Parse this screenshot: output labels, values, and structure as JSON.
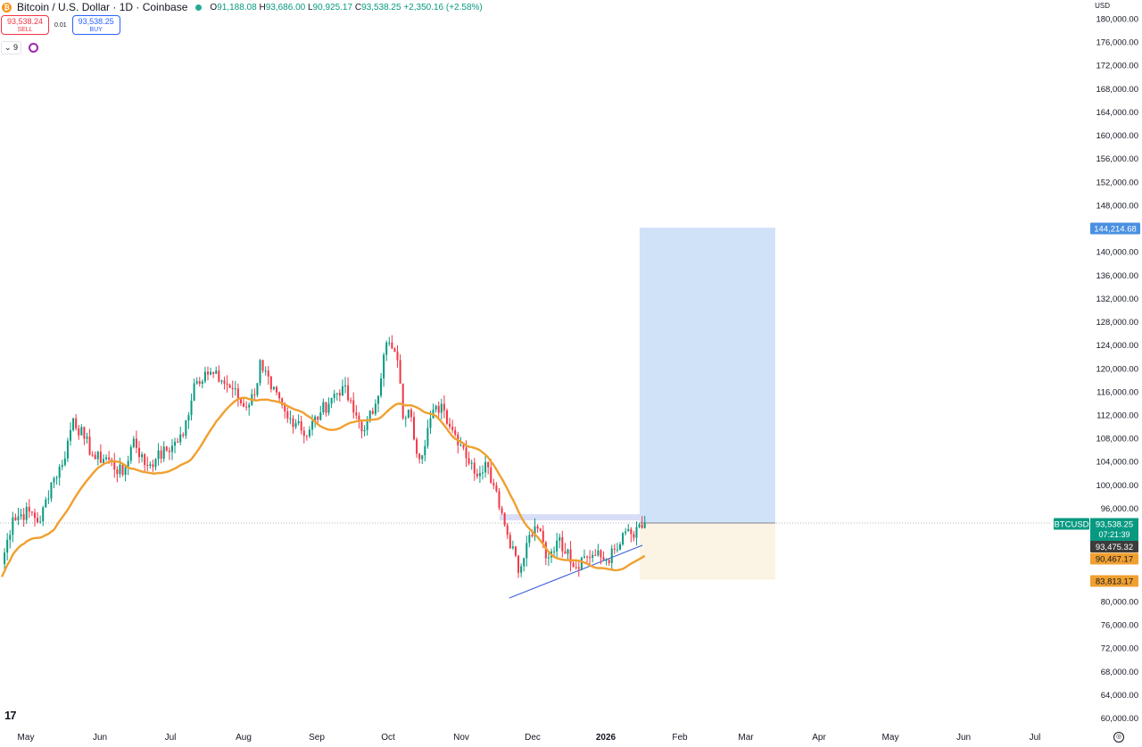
{
  "header": {
    "coin_glyph": "₿",
    "title": "Bitcoin / U.S. Dollar · 1D · Coinbase",
    "open_label": "O",
    "open": "91,188.08",
    "high_label": "H",
    "high": "93,686.00",
    "low_label": "L",
    "low": "90,925.17",
    "close_label": "C",
    "close": "93,538.25",
    "change": "+2,350.16 (+2.58%)"
  },
  "trade": {
    "sell_price": "93,538.24",
    "sell_label": "SELL",
    "spread": "0.01",
    "buy_price": "93,538.25",
    "buy_label": "BUY"
  },
  "indicators": {
    "toggle_label": "⌄ 9"
  },
  "currency": "USD",
  "logo_text": "17",
  "colors": {
    "up": "#089981",
    "down": "#f23645",
    "ma": "#f0a030",
    "target_zone": "#cfe2f8",
    "stop_zone": "#fbf3e3",
    "trendline": "#3d5fd9",
    "resistance_zone": "#d8def8"
  },
  "chart_data": {
    "type": "candlestick",
    "symbol": "BTCUSD",
    "interval": "1D",
    "ylim": [
      59000,
      182000
    ],
    "y_ticks": [
      180000,
      176000,
      172000,
      168000,
      164000,
      160000,
      156000,
      152000,
      148000,
      140000,
      136000,
      132000,
      128000,
      124000,
      120000,
      116000,
      112000,
      108000,
      104000,
      100000,
      96000,
      80000,
      76000,
      72000,
      68000,
      64000,
      60000
    ],
    "x_ticks": [
      "May",
      "Jun",
      "Jul",
      "Aug",
      "Sep",
      "Oct",
      "Nov",
      "Dec",
      "2026",
      "Feb",
      "Mar",
      "Apr",
      "May",
      "Jun",
      "Jul"
    ],
    "anchors": [
      {
        "day": 0,
        "price": 86500
      },
      {
        "day": 4,
        "price": 94500
      },
      {
        "day": 10,
        "price": 95500
      },
      {
        "day": 14,
        "price": 93800
      },
      {
        "day": 18,
        "price": 100500
      },
      {
        "day": 22,
        "price": 103500
      },
      {
        "day": 26,
        "price": 111500
      },
      {
        "day": 30,
        "price": 108000
      },
      {
        "day": 34,
        "price": 104500
      },
      {
        "day": 38,
        "price": 104800
      },
      {
        "day": 44,
        "price": 101800
      },
      {
        "day": 48,
        "price": 108000
      },
      {
        "day": 52,
        "price": 103500
      },
      {
        "day": 56,
        "price": 104500
      },
      {
        "day": 62,
        "price": 106800
      },
      {
        "day": 66,
        "price": 108500
      },
      {
        "day": 70,
        "price": 117500
      },
      {
        "day": 74,
        "price": 119500
      },
      {
        "day": 80,
        "price": 118000
      },
      {
        "day": 84,
        "price": 116500
      },
      {
        "day": 88,
        "price": 113500
      },
      {
        "day": 92,
        "price": 115500
      },
      {
        "day": 94,
        "price": 121500
      },
      {
        "day": 98,
        "price": 116500
      },
      {
        "day": 104,
        "price": 111500
      },
      {
        "day": 108,
        "price": 111000
      },
      {
        "day": 110,
        "price": 108500
      },
      {
        "day": 116,
        "price": 112500
      },
      {
        "day": 120,
        "price": 115000
      },
      {
        "day": 124,
        "price": 117000
      },
      {
        "day": 128,
        "price": 112500
      },
      {
        "day": 132,
        "price": 109500
      },
      {
        "day": 136,
        "price": 114000
      },
      {
        "day": 140,
        "price": 124500
      },
      {
        "day": 142,
        "price": 123500
      },
      {
        "day": 144,
        "price": 121500
      },
      {
        "day": 146,
        "price": 111500
      },
      {
        "day": 148,
        "price": 113000
      },
      {
        "day": 152,
        "price": 104500
      },
      {
        "day": 156,
        "price": 111500
      },
      {
        "day": 160,
        "price": 114000
      },
      {
        "day": 164,
        "price": 109500
      },
      {
        "day": 168,
        "price": 106500
      },
      {
        "day": 172,
        "price": 102000
      },
      {
        "day": 176,
        "price": 104000
      },
      {
        "day": 180,
        "price": 99000
      },
      {
        "day": 184,
        "price": 91500
      },
      {
        "day": 186,
        "price": 89500
      },
      {
        "day": 188,
        "price": 85000
      },
      {
        "day": 190,
        "price": 87500
      },
      {
        "day": 192,
        "price": 91500
      },
      {
        "day": 196,
        "price": 92200
      },
      {
        "day": 198,
        "price": 87500
      },
      {
        "day": 202,
        "price": 90500
      },
      {
        "day": 206,
        "price": 89000
      },
      {
        "day": 208,
        "price": 86000
      },
      {
        "day": 212,
        "price": 87800
      },
      {
        "day": 216,
        "price": 88000
      },
      {
        "day": 220,
        "price": 87200
      },
      {
        "day": 224,
        "price": 89000
      },
      {
        "day": 228,
        "price": 92500
      },
      {
        "day": 230,
        "price": 91000
      },
      {
        "day": 234,
        "price": 93538
      }
    ],
    "moving_average": {
      "period": 20,
      "last_value": "90,467.17"
    },
    "price_labels": {
      "symbol_tag": "BTCUSD",
      "current": "93,538.25",
      "countdown": "07:21:39",
      "crosshair": "93,475.32",
      "ma_value": "90,467.17",
      "target": "144,214.68",
      "stop": "83,813.17"
    },
    "position": {
      "type": "long",
      "entry": 93538.25,
      "target": 144214.68,
      "stop": 83813.17,
      "start_day": 236,
      "end_day": 286
    },
    "resistance_zone": {
      "start_day": 186,
      "end_day": 236,
      "low": 93600,
      "high": 94600
    },
    "trendline": {
      "from": {
        "day": 189,
        "price": 81200
      },
      "to": {
        "day": 237,
        "price": 89700
      }
    }
  }
}
